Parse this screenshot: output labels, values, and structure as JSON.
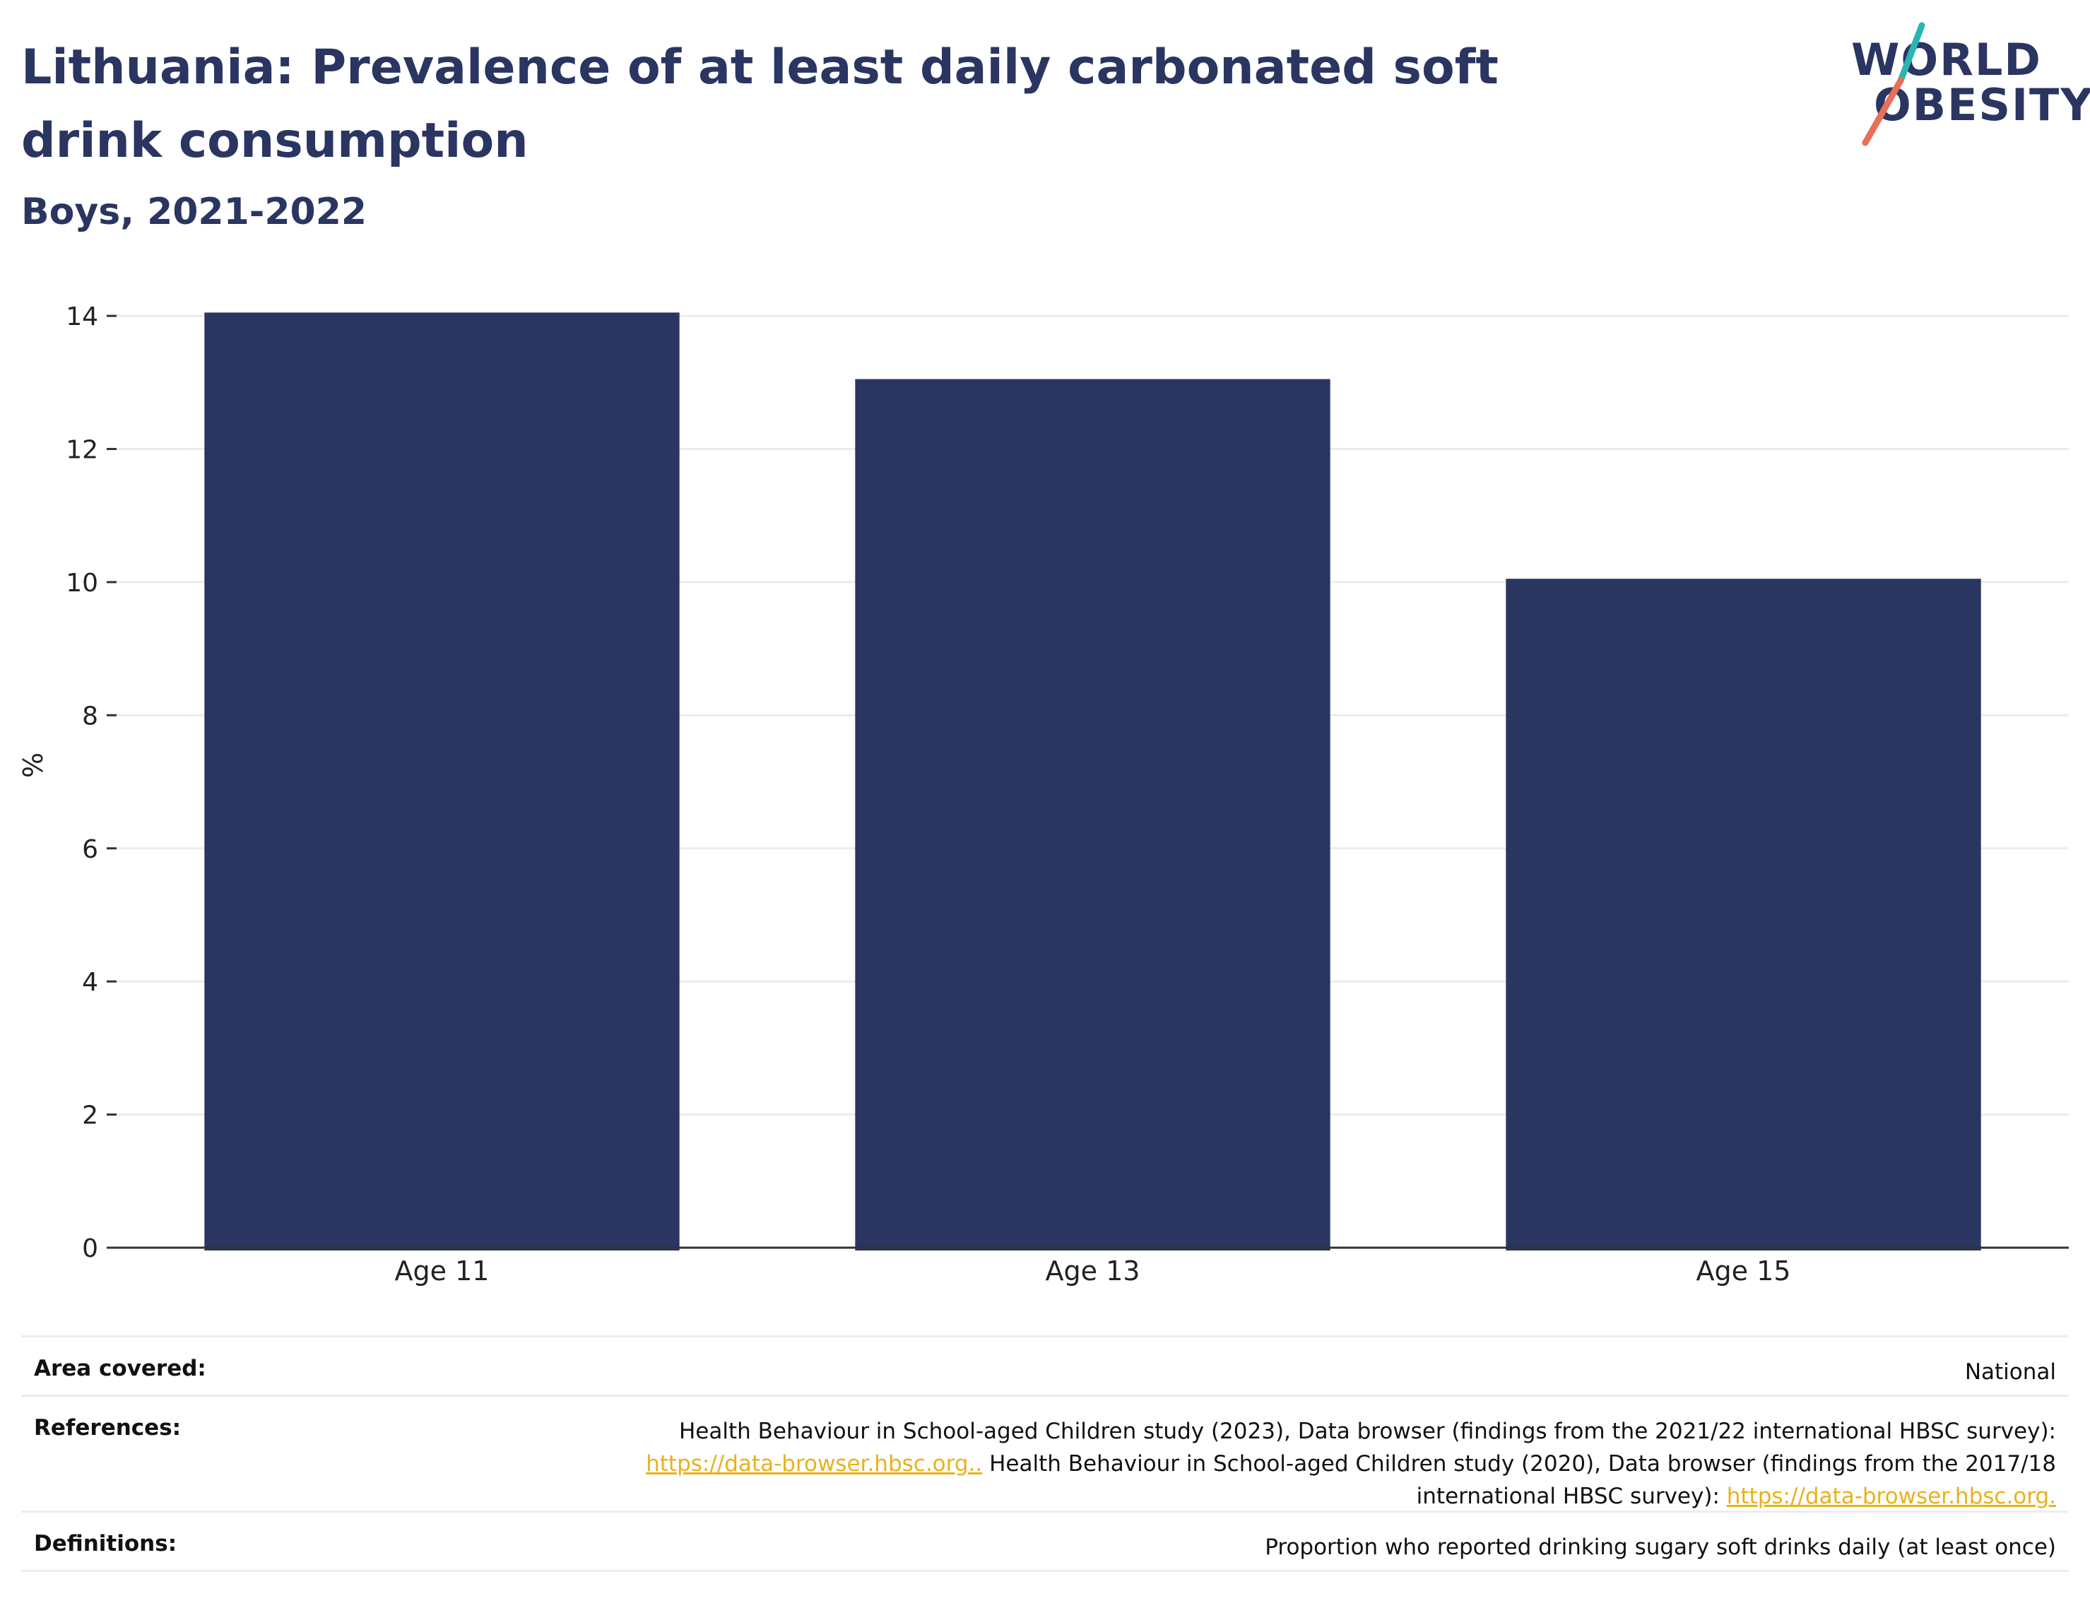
{
  "header": {
    "title": "Lithuania: Prevalence of at least daily carbonated soft drink consumption",
    "subtitle": "Boys, 2021-2022"
  },
  "logo": {
    "line1": "WORLD",
    "line2": "OBESITY",
    "accent_colors": [
      "#2bb5b0",
      "#e8705a"
    ]
  },
  "chart_data": {
    "type": "bar",
    "categories": [
      "Age 11",
      "Age 13",
      "Age 15"
    ],
    "values": [
      14.05,
      13.05,
      10.05
    ],
    "ylabel": "%",
    "xlabel": "",
    "ylim": [
      0,
      14.5
    ],
    "yticks": [
      0,
      2,
      4,
      6,
      8,
      10,
      12,
      14
    ],
    "grid": true,
    "bar_color": "#2a3561"
  },
  "meta": {
    "area_covered": {
      "label": "Area covered:",
      "value": "National"
    },
    "references": {
      "label": "References:",
      "text1": "Health Behaviour in School-aged Children study (2023), Data browser (findings from the 2021/22 international HBSC survey):",
      "link1": "https://data-browser.hbsc.org..",
      "text2": " Health Behaviour in School-aged Children study (2020), Data browser (findings from the 2017/18",
      "text3": "international HBSC survey): ",
      "link2": "https://data-browser.hbsc.org."
    },
    "definitions": {
      "label": "Definitions:",
      "value": "Proportion who reported drinking sugary soft drinks daily (at least once)"
    }
  }
}
